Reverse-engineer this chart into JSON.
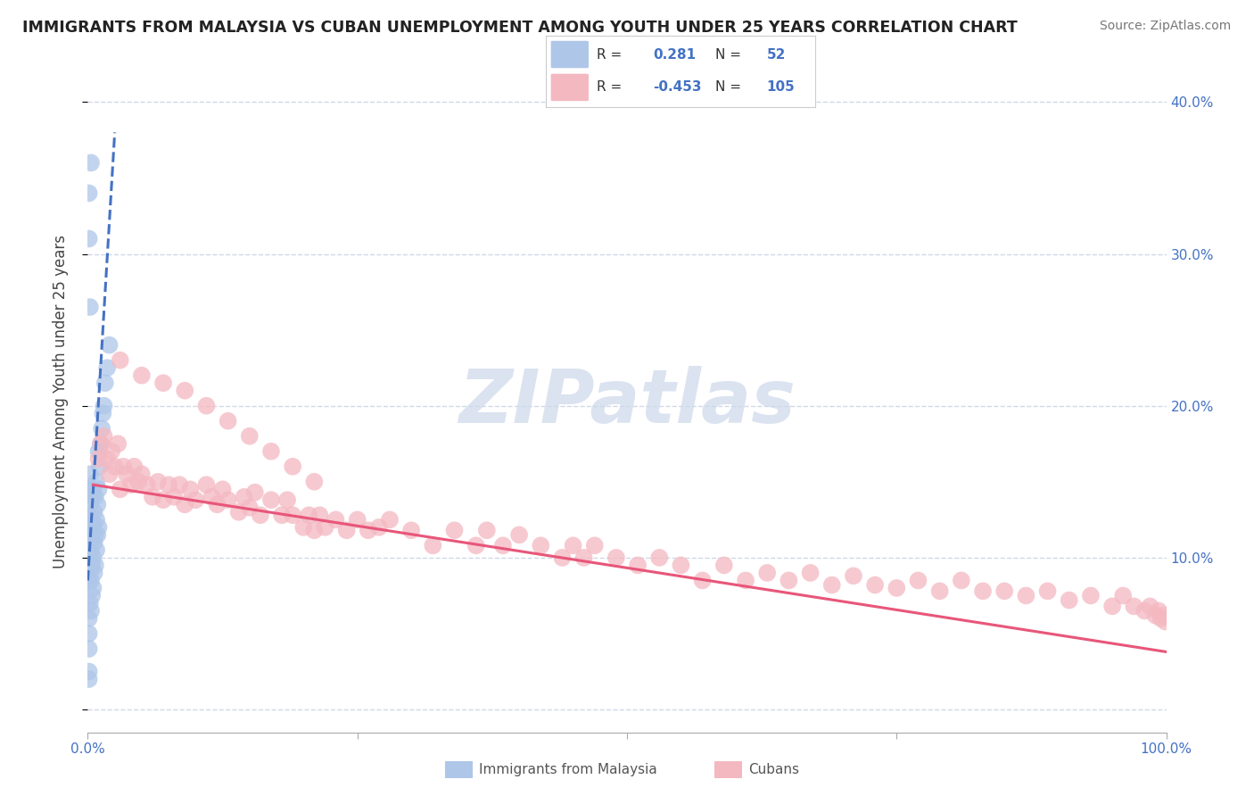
{
  "title": "IMMIGRANTS FROM MALAYSIA VS CUBAN UNEMPLOYMENT AMONG YOUTH UNDER 25 YEARS CORRELATION CHART",
  "source": "Source: ZipAtlas.com",
  "ylabel": "Unemployment Among Youth under 25 years",
  "xlim": [
    0.0,
    1.0
  ],
  "ylim": [
    -0.015,
    0.42
  ],
  "yticks": [
    0.0,
    0.1,
    0.2,
    0.3,
    0.4
  ],
  "ytick_labels_right": [
    "",
    "10.0%",
    "20.0%",
    "30.0%",
    "40.0%"
  ],
  "xtick_left": "0.0%",
  "xtick_right": "100.0%",
  "blue_R": 0.281,
  "blue_N": 52,
  "pink_R": -0.453,
  "pink_N": 105,
  "blue_color": "#aec6e8",
  "pink_color": "#f4b8c1",
  "blue_line_color": "#4472c4",
  "pink_line_color": "#e8567a",
  "background_color": "#ffffff",
  "grid_color": "#d0d8e8",
  "watermark_text": "ZIPatlas",
  "watermark_color": "#cdd8ea",
  "legend_blue_color": "#aec6e8",
  "legend_pink_color": "#f4b8c1",
  "legend_text_color": "#4472c4",
  "blue_x": [
    0.001,
    0.001,
    0.001,
    0.001,
    0.001,
    0.002,
    0.002,
    0.002,
    0.002,
    0.002,
    0.003,
    0.003,
    0.003,
    0.003,
    0.004,
    0.004,
    0.004,
    0.004,
    0.005,
    0.005,
    0.005,
    0.005,
    0.006,
    0.006,
    0.006,
    0.007,
    0.007,
    0.007,
    0.008,
    0.008,
    0.008,
    0.009,
    0.009,
    0.01,
    0.01,
    0.01,
    0.011,
    0.012,
    0.013,
    0.014,
    0.015,
    0.016,
    0.018,
    0.02,
    0.002,
    0.001,
    0.001,
    0.003,
    0.001,
    0.001,
    0.001,
    0.001
  ],
  "blue_y": [
    0.085,
    0.06,
    0.1,
    0.12,
    0.145,
    0.07,
    0.09,
    0.11,
    0.135,
    0.155,
    0.065,
    0.085,
    0.105,
    0.125,
    0.075,
    0.095,
    0.115,
    0.14,
    0.08,
    0.1,
    0.12,
    0.145,
    0.09,
    0.11,
    0.13,
    0.095,
    0.115,
    0.14,
    0.105,
    0.125,
    0.15,
    0.115,
    0.135,
    0.12,
    0.145,
    0.17,
    0.16,
    0.175,
    0.185,
    0.195,
    0.2,
    0.215,
    0.225,
    0.24,
    0.265,
    0.31,
    0.34,
    0.36,
    0.05,
    0.025,
    0.04,
    0.02
  ],
  "blue_line_x": [
    0.0,
    0.025
  ],
  "blue_line_y": [
    0.085,
    0.38
  ],
  "pink_line_x": [
    0.005,
    1.0
  ],
  "pink_line_y": [
    0.148,
    0.038
  ],
  "pink_x": [
    0.01,
    0.012,
    0.015,
    0.018,
    0.02,
    0.022,
    0.025,
    0.028,
    0.03,
    0.033,
    0.036,
    0.04,
    0.043,
    0.047,
    0.05,
    0.055,
    0.06,
    0.065,
    0.07,
    0.075,
    0.08,
    0.085,
    0.09,
    0.095,
    0.1,
    0.11,
    0.115,
    0.12,
    0.125,
    0.13,
    0.14,
    0.145,
    0.15,
    0.155,
    0.16,
    0.17,
    0.18,
    0.185,
    0.19,
    0.2,
    0.205,
    0.21,
    0.215,
    0.22,
    0.23,
    0.24,
    0.25,
    0.26,
    0.27,
    0.28,
    0.3,
    0.32,
    0.34,
    0.36,
    0.37,
    0.385,
    0.4,
    0.42,
    0.44,
    0.45,
    0.46,
    0.47,
    0.49,
    0.51,
    0.53,
    0.55,
    0.57,
    0.59,
    0.61,
    0.63,
    0.65,
    0.67,
    0.69,
    0.71,
    0.73,
    0.75,
    0.77,
    0.79,
    0.81,
    0.83,
    0.85,
    0.87,
    0.89,
    0.91,
    0.93,
    0.95,
    0.96,
    0.97,
    0.98,
    0.985,
    0.99,
    0.993,
    0.995,
    0.997,
    0.999,
    0.03,
    0.05,
    0.07,
    0.09,
    0.11,
    0.13,
    0.15,
    0.17,
    0.19,
    0.21
  ],
  "pink_y": [
    0.165,
    0.175,
    0.18,
    0.165,
    0.155,
    0.17,
    0.16,
    0.175,
    0.145,
    0.16,
    0.155,
    0.148,
    0.16,
    0.15,
    0.155,
    0.148,
    0.14,
    0.15,
    0.138,
    0.148,
    0.14,
    0.148,
    0.135,
    0.145,
    0.138,
    0.148,
    0.14,
    0.135,
    0.145,
    0.138,
    0.13,
    0.14,
    0.133,
    0.143,
    0.128,
    0.138,
    0.128,
    0.138,
    0.128,
    0.12,
    0.128,
    0.118,
    0.128,
    0.12,
    0.125,
    0.118,
    0.125,
    0.118,
    0.12,
    0.125,
    0.118,
    0.108,
    0.118,
    0.108,
    0.118,
    0.108,
    0.115,
    0.108,
    0.1,
    0.108,
    0.1,
    0.108,
    0.1,
    0.095,
    0.1,
    0.095,
    0.085,
    0.095,
    0.085,
    0.09,
    0.085,
    0.09,
    0.082,
    0.088,
    0.082,
    0.08,
    0.085,
    0.078,
    0.085,
    0.078,
    0.078,
    0.075,
    0.078,
    0.072,
    0.075,
    0.068,
    0.075,
    0.068,
    0.065,
    0.068,
    0.062,
    0.065,
    0.06,
    0.062,
    0.058,
    0.23,
    0.22,
    0.215,
    0.21,
    0.2,
    0.19,
    0.18,
    0.17,
    0.16,
    0.15
  ]
}
